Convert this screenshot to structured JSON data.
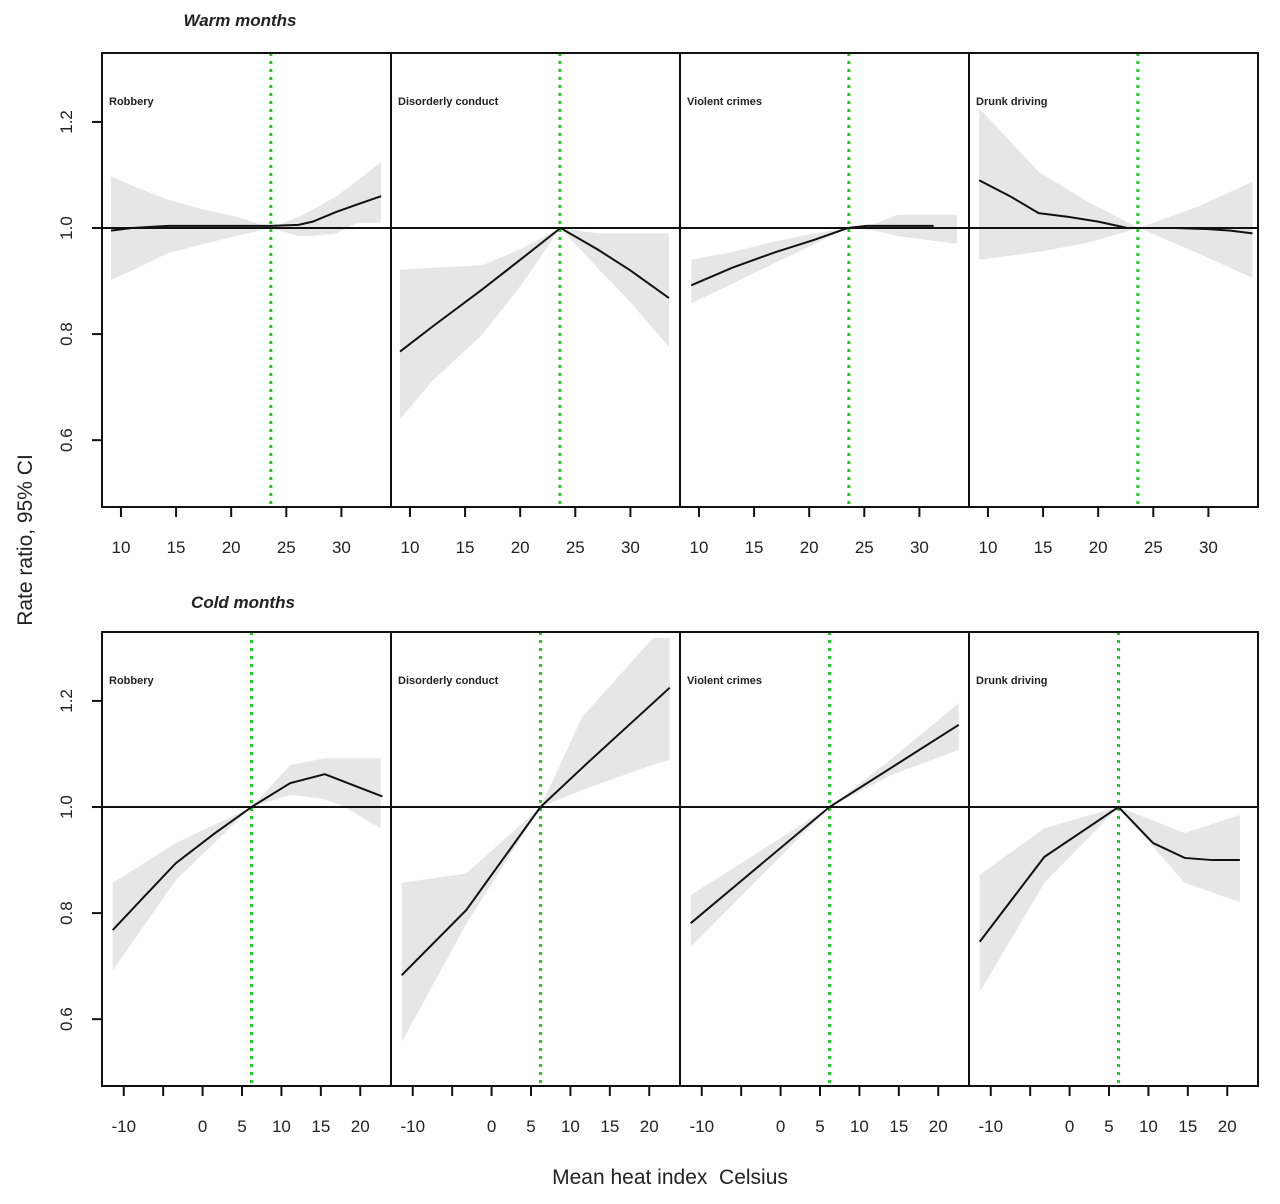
{
  "chart_data": {
    "type": "line",
    "ylabel": "Rate ratio, 95% CI",
    "xlabel": "Mean heat index  Celsius",
    "ylim": [
      0.474,
      1.33
    ],
    "yticks": [
      0.6,
      0.8,
      1.0,
      1.2
    ],
    "ytick_labels": [
      "0.6",
      "0.8",
      "1.0",
      "1.2"
    ],
    "reference_line_y": 1.0,
    "colors": {
      "line": "#111111",
      "ci_band": "#e6e6e6",
      "reference_temp": "#22cc22",
      "frame": "#111111"
    },
    "rows": [
      {
        "title": "Warm months",
        "xlim": [
          8.28,
          34.5
        ],
        "xticks": [
          10,
          15,
          20,
          25,
          30
        ],
        "xtick_labels": [
          "10",
          "15",
          "20",
          "25",
          "30"
        ],
        "reference_temp": 23.6,
        "panels": [
          {
            "label": "Robbery",
            "mean": {
              "x": [
                9.1,
                11,
                14.3,
                17.5,
                20.9,
                23.6,
                26.1,
                27.4,
                29.5,
                31.5,
                33.6
              ],
              "y": [
                0.995,
                1.0,
                1.004,
                1.004,
                1.004,
                1.004,
                1.006,
                1.012,
                1.03,
                1.045,
                1.06
              ]
            },
            "ci": {
              "x": [
                9.1,
                11,
                14.3,
                17.5,
                20.9,
                23.6,
                26.1,
                27.4,
                29.5,
                31.5,
                33.6
              ],
              "upper": [
                1.097,
                1.08,
                1.053,
                1.035,
                1.019,
                1.0,
                1.021,
                1.035,
                1.059,
                1.09,
                1.125
              ],
              "lower": [
                0.902,
                0.92,
                0.953,
                0.97,
                0.987,
                1.0,
                0.985,
                0.985,
                0.99,
                1.01,
                1.01
              ]
            }
          },
          {
            "label": "Disorderly conduct",
            "mean": {
              "x": [
                9.1,
                12.1,
                16.6,
                20,
                23.66,
                27,
                30,
                33.5
              ],
              "y": [
                0.767,
                0.815,
                0.885,
                0.94,
                1.0,
                0.96,
                0.92,
                0.868
              ]
            },
            "ci": {
              "x": [
                9.1,
                12.1,
                16.6,
                20,
                23.66,
                27,
                30,
                33.5
              ],
              "upper": [
                0.921,
                0.925,
                0.93,
                0.96,
                1.0,
                0.99,
                0.99,
                0.99
              ],
              "lower": [
                0.64,
                0.713,
                0.8,
                0.89,
                1.0,
                0.925,
                0.86,
                0.776
              ]
            }
          },
          {
            "label": "Violent crimes",
            "mean": {
              "x": [
                9.3,
                13,
                17,
                20.5,
                23.5,
                25.2,
                31.3
              ],
              "y": [
                0.892,
                0.925,
                0.955,
                0.978,
                1.0,
                1.004,
                1.004
              ]
            },
            "ci": {
              "x": [
                9.3,
                13,
                17,
                20.5,
                23.5,
                26,
                28,
                33.4
              ],
              "upper": [
                0.94,
                0.955,
                0.975,
                0.99,
                1.0,
                1.008,
                1.025,
                1.025
              ],
              "lower": [
                0.858,
                0.895,
                0.935,
                0.97,
                1.0,
                0.995,
                0.985,
                0.97
              ]
            }
          },
          {
            "label": "Drunk driving",
            "mean": {
              "x": [
                9.2,
                12,
                14.6,
                17.3,
                20,
                22.65,
                27,
                30,
                32,
                34
              ],
              "y": [
                1.09,
                1.06,
                1.028,
                1.021,
                1.012,
                1.0,
                1.0,
                0.998,
                0.995,
                0.99
              ]
            },
            "ci": {
              "x": [
                9.2,
                14.6,
                19,
                23.7,
                29,
                34
              ],
              "upper": [
                1.226,
                1.106,
                1.05,
                1.0,
                1.04,
                1.087
              ],
              "lower": [
                0.94,
                0.955,
                0.972,
                1.0,
                0.953,
                0.906
              ]
            }
          }
        ]
      },
      {
        "title": "Cold months",
        "xlim": [
          -12.76,
          23.9
        ],
        "xticks": [
          -10,
          -5,
          0,
          5,
          10,
          15,
          20
        ],
        "xtick_labels": [
          "-10",
          "",
          "0",
          "5",
          "10",
          "15",
          "20"
        ],
        "reference_temp": 6.2,
        "panels": [
          {
            "label": "Robbery",
            "mean": {
              "x": [
                -11.4,
                -7.6,
                -3.4,
                1.5,
                6.2,
                11.1,
                15.5,
                22.8
              ],
              "y": [
                0.768,
                0.828,
                0.894,
                0.95,
                1.0,
                1.045,
                1.062,
                1.02
              ]
            },
            "ci": {
              "x": [
                -11.4,
                -3.4,
                6.2,
                11.1,
                15.5,
                18,
                22.6
              ],
              "upper": [
                0.857,
                0.932,
                1.0,
                1.079,
                1.092,
                1.092,
                1.092
              ],
              "lower": [
                0.692,
                0.862,
                1.0,
                1.023,
                1.015,
                1.0,
                0.96
              ]
            }
          },
          {
            "label": "Disorderly conduct",
            "mean": {
              "x": [
                -11.4,
                -3.2,
                6.2,
                12.3,
                22.6
              ],
              "y": [
                0.683,
                0.806,
                1.0,
                1.085,
                1.225
              ]
            },
            "ci": {
              "x": [
                -11.4,
                -3.2,
                6.2,
                11.5,
                20.5,
                22.6
              ],
              "upper": [
                0.857,
                0.875,
                1.0,
                1.17,
                1.319,
                1.319
              ],
              "lower": [
                0.557,
                0.78,
                1.0,
                1.032,
                1.08,
                1.089
              ]
            }
          },
          {
            "label": "Violent crimes",
            "mean": {
              "x": [
                -11.4,
                6.2,
                22.6
              ],
              "y": [
                0.781,
                1.0,
                1.155
              ]
            },
            "ci": {
              "x": [
                -11.4,
                6.2,
                14,
                22.6
              ],
              "upper": [
                0.834,
                1.0,
                1.09,
                1.196
              ],
              "lower": [
                0.736,
                1.0,
                1.06,
                1.108
              ]
            }
          },
          {
            "label": "Drunk driving",
            "mean": {
              "x": [
                -11.4,
                -3.2,
                6.2,
                10.6,
                14.6,
                18.1,
                21.6
              ],
              "y": [
                0.746,
                0.906,
                1.0,
                0.932,
                0.904,
                0.9,
                0.9
              ]
            },
            "ci": {
              "x": [
                -11.4,
                -3.2,
                6.2,
                14.6,
                21.6
              ],
              "upper": [
                0.872,
                0.96,
                1.0,
                0.951,
                0.985
              ],
              "lower": [
                0.651,
                0.857,
                1.0,
                0.857,
                0.821
              ]
            }
          }
        ]
      }
    ]
  }
}
